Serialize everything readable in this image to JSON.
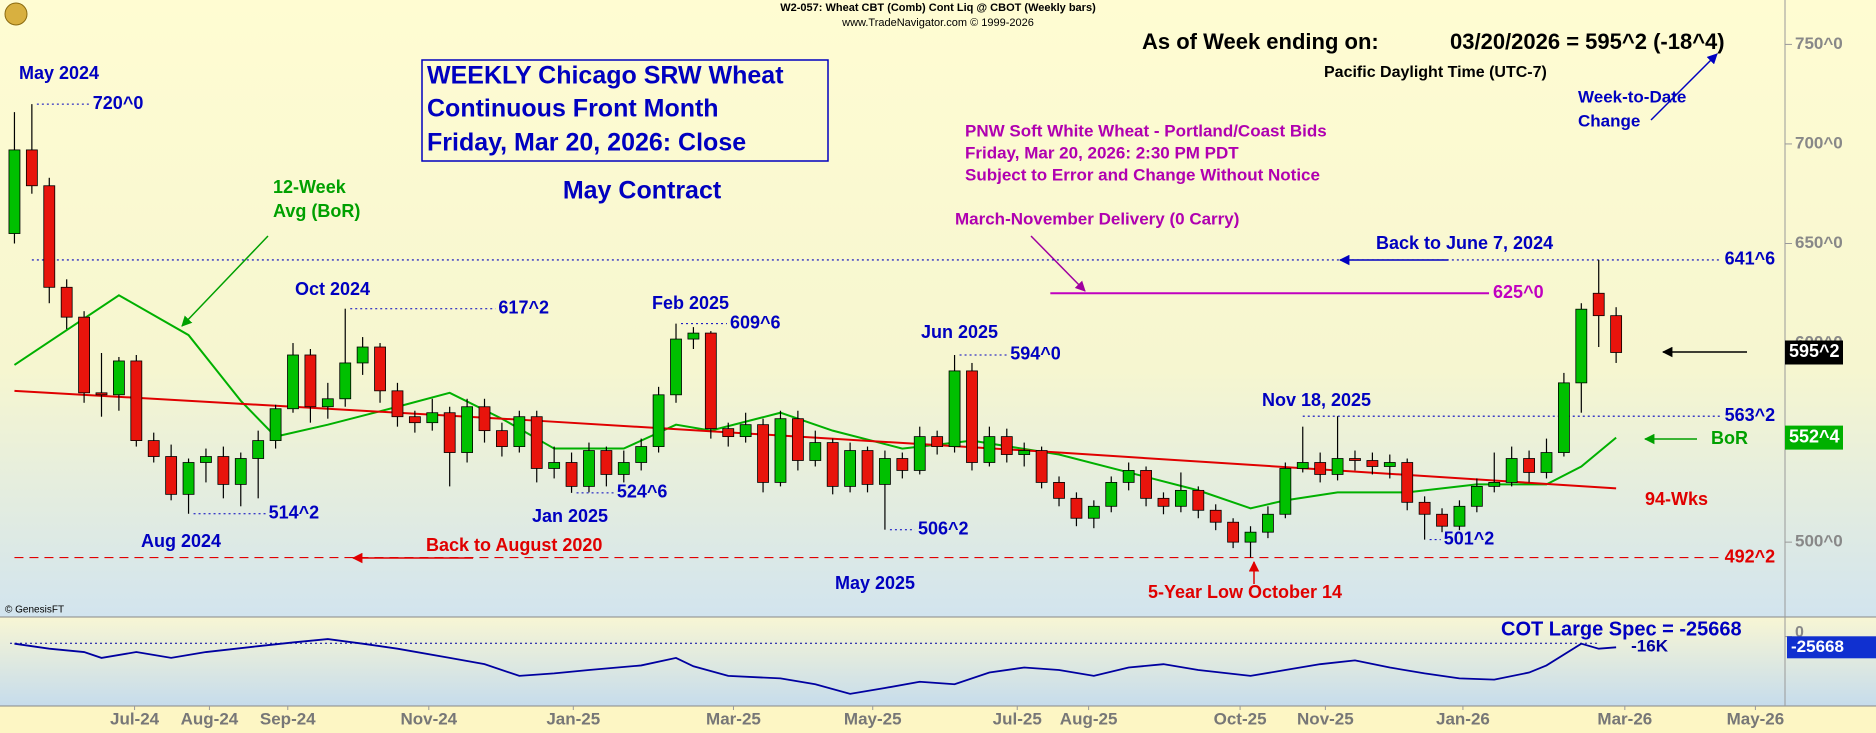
{
  "chart_data": {
    "type": "candlestick",
    "header": "W2-057:  Wheat CBT (Comb) Cont Liq @ CBOT  (Weekly bars)",
    "source": "www.TradeNavigator.com © 1999-2026",
    "title_lines": [
      "WEEKLY Chicago SRW Wheat",
      "Continuous Front Month",
      "Friday, Mar 20, 2026: Close"
    ],
    "subtitle": "May Contract",
    "as_of": "As of Week ending on:",
    "as_of_value": "03/20/2026 = 595^2 (-18^4)",
    "timezone": "Pacific Daylight Time (UTC-7)",
    "change_note": [
      "Week-to-Date",
      "Change"
    ],
    "pnw_note": [
      "PNW Soft White Wheat  - Portland/Coast Bids",
      "Friday, Mar 20, 2026: 2:30 PM PDT",
      "Subject to Error and Change Without Notice"
    ],
    "watermark": "© GenesisFT",
    "annotations": [
      "May 2024",
      "Aug 2024",
      "Oct 2024",
      "Jan 2025",
      "Feb 2025",
      "May 2025",
      "Jun 2025",
      "Nov 18, 2025",
      "Back to June 7, 2024",
      "Back to August 2020",
      "5-Year Low October 14",
      "March-November Delivery (0 Carry)",
      "BoR"
    ],
    "xlim": [
      -0.83,
      101.7
    ],
    "xticks": [
      {
        "value": 6.9,
        "label": "Jul-24"
      },
      {
        "value": 11.2,
        "label": "Aug-24"
      },
      {
        "value": 15.7,
        "label": "Sep-24"
      },
      {
        "value": 23.8,
        "label": "Nov-24"
      },
      {
        "value": 32.1,
        "label": "Jan-25"
      },
      {
        "value": 41.3,
        "label": "Mar-25"
      },
      {
        "value": 49.3,
        "label": "May-25"
      },
      {
        "value": 57.6,
        "label": "Jul-25"
      },
      {
        "value": 61.7,
        "label": "Aug-25"
      },
      {
        "value": 70.4,
        "label": "Oct-25"
      },
      {
        "value": 75.3,
        "label": "Nov-25"
      },
      {
        "value": 83.2,
        "label": "Jan-26"
      },
      {
        "value": 92.5,
        "label": "Mar-26"
      },
      {
        "value": 100,
        "label": "May-26"
      }
    ],
    "ylim": [
      462.9,
      761.5
    ],
    "yticks": [
      {
        "value": 500,
        "label": "500^0"
      },
      {
        "value": 550,
        "label": "550^0"
      },
      {
        "value": 600,
        "label": "600^0"
      },
      {
        "value": 650,
        "label": "650^0"
      },
      {
        "value": 700,
        "label": "700^0"
      },
      {
        "value": 750,
        "label": "750^0"
      }
    ],
    "up_color": "#00c000",
    "down_color": "#e8140c",
    "ohlc": {
      "open": [
        655,
        697,
        679,
        628,
        613,
        575,
        574,
        591,
        551,
        543,
        524,
        540,
        543,
        529,
        542,
        551,
        567,
        594,
        568,
        572,
        590,
        598,
        576,
        563,
        560,
        565,
        545,
        568,
        556,
        548,
        563,
        537,
        540,
        528,
        546,
        534,
        540,
        548,
        574,
        602,
        605,
        557,
        553,
        559,
        530,
        562,
        541,
        550,
        528,
        546,
        529,
        542,
        536,
        553,
        548,
        586,
        540,
        553,
        544,
        546,
        530,
        522,
        512,
        518,
        530,
        536,
        522,
        518,
        526,
        516,
        510,
        500,
        505,
        514,
        537,
        540,
        534,
        542,
        541,
        538,
        540,
        520,
        514,
        508,
        518,
        528,
        530,
        542,
        535,
        545,
        580,
        625,
        613.75
      ],
      "high": [
        716,
        720,
        683,
        632,
        616,
        595,
        593,
        594,
        555,
        549,
        542,
        547,
        548,
        545,
        556,
        569,
        600,
        597,
        580,
        617.25,
        603,
        600,
        580,
        566,
        572,
        568,
        572,
        572,
        560,
        566,
        566,
        548,
        545,
        550,
        548,
        546,
        552,
        578,
        609.75,
        608,
        606,
        560,
        565,
        562,
        566,
        566,
        556,
        552,
        550,
        548,
        546,
        545,
        558,
        556,
        594,
        590,
        558,
        557,
        550,
        548,
        533,
        525,
        521,
        533,
        540,
        538,
        525,
        535,
        528,
        519,
        512,
        508,
        518,
        540,
        558,
        545,
        563.25,
        546,
        545,
        544,
        542,
        523,
        517,
        521,
        532,
        545,
        548,
        546,
        552,
        585,
        620,
        641.75,
        618
      ],
      "low": [
        650,
        675,
        620,
        607,
        570,
        563,
        566,
        548,
        540,
        521,
        514.25,
        530,
        522,
        518,
        522,
        547,
        565,
        560,
        562,
        568,
        584,
        570,
        558,
        555,
        556,
        528,
        540,
        550,
        543,
        545,
        530,
        532,
        524.75,
        525,
        528,
        530,
        536,
        545,
        570,
        597,
        552,
        548,
        550,
        525,
        528,
        536,
        538,
        524,
        525,
        525,
        506.25,
        532,
        534,
        544,
        545,
        536,
        538,
        540,
        538,
        527,
        518,
        508,
        507,
        515,
        526,
        518,
        514,
        515,
        512,
        506,
        497,
        492.25,
        502,
        512,
        535,
        530,
        531,
        536,
        534,
        532,
        516,
        501.25,
        505,
        506,
        515,
        525,
        528,
        530,
        532,
        543,
        565,
        598,
        590
      ],
      "close": [
        697,
        679,
        628,
        613,
        575,
        574,
        591,
        551,
        543,
        524,
        540,
        543,
        529,
        542,
        551,
        567,
        594,
        568,
        572,
        590,
        598,
        576,
        563,
        560,
        565,
        545,
        568,
        556,
        548,
        563,
        537,
        540,
        528,
        546,
        534,
        540,
        548,
        574,
        602,
        605,
        557,
        553,
        559,
        530,
        562,
        541,
        550,
        528,
        546,
        529,
        542,
        536,
        553,
        548,
        586,
        540,
        553,
        544,
        546,
        530,
        522,
        512,
        518,
        530,
        536,
        522,
        518,
        526,
        516,
        510,
        500,
        505,
        514,
        537,
        540,
        534,
        542,
        541,
        538,
        540,
        520,
        514,
        508,
        518,
        528,
        530,
        542,
        535,
        545,
        580,
        617,
        613.75,
        595.25
      ],
      "last_label": "595^2"
    },
    "lines": [
      {
        "name": [
          "12-Week",
          "Avg (BoR)"
        ],
        "color": "#00b000",
        "last_label": "552^4",
        "x": [
          0,
          6,
          10,
          13,
          15,
          18,
          22,
          25,
          28,
          31,
          35,
          38,
          40,
          44,
          47,
          51,
          55,
          60,
          64,
          68,
          71,
          73,
          76,
          80,
          84,
          88,
          90,
          92
        ],
        "values": [
          589,
          624,
          604,
          571,
          553,
          559,
          568,
          575,
          562,
          547,
          547,
          559,
          556,
          565,
          556,
          547,
          551,
          544,
          535,
          526,
          517,
          521,
          525,
          525,
          529,
          529,
          538,
          552.5
        ]
      },
      {
        "name": "94-Wks",
        "color": "#e00000",
        "x": [
          0,
          30,
          60,
          92
        ],
        "values": [
          576,
          561,
          545,
          527
        ]
      }
    ],
    "point_labels": [
      {
        "value": 720,
        "label": "720^0"
      },
      {
        "value": 617.25,
        "label": "617^2"
      },
      {
        "value": 609.75,
        "label": "609^6"
      },
      {
        "value": 594,
        "label": "594^0"
      },
      {
        "value": 514.25,
        "label": "514^2"
      },
      {
        "value": 524.75,
        "label": "524^6"
      },
      {
        "value": 506.25,
        "label": "506^2"
      },
      {
        "value": 501.25,
        "label": "501^2"
      }
    ],
    "levels": [
      {
        "value": 641.75,
        "label": "641^6",
        "color": "#0000c0"
      },
      {
        "value": 563.25,
        "label": "563^2",
        "color": "#0000c0"
      },
      {
        "value": 492.25,
        "label": "492^2",
        "color": "#e00000"
      },
      {
        "value": 625,
        "label": "625^0",
        "color": "#c000c0"
      }
    ],
    "cot": {
      "title": "COT Large Spec = -25668",
      "color": "#0000a0",
      "ylim": [
        -166000,
        42000
      ],
      "yticks": [
        0,
        {
          "value": -16000,
          "label": "-16K"
        }
      ],
      "x": [
        0,
        2,
        4,
        5,
        7,
        9,
        11,
        14,
        16,
        18,
        20,
        22,
        25,
        27,
        29,
        31,
        33,
        36,
        38,
        39,
        41,
        44,
        46,
        48,
        50,
        52,
        54,
        56,
        58,
        60,
        62,
        64,
        66,
        68,
        71,
        73,
        75,
        77,
        79,
        81,
        83,
        85,
        87,
        88,
        90,
        91,
        92
      ],
      "values": [
        -17000,
        -29000,
        -37000,
        -51000,
        -37000,
        -51000,
        -37000,
        -23000,
        -14000,
        -6000,
        -17000,
        -29000,
        -51000,
        -66000,
        -94000,
        -88000,
        -80000,
        -69000,
        -51000,
        -71000,
        -94000,
        -100000,
        -114000,
        -137000,
        -123000,
        -108000,
        -114000,
        -86000,
        -74000,
        -80000,
        -94000,
        -74000,
        -66000,
        -80000,
        -94000,
        -80000,
        -66000,
        -57000,
        -74000,
        -88000,
        -100000,
        -103000,
        -86000,
        -69000,
        -17000,
        -29000,
        -25668
      ]
    }
  }
}
